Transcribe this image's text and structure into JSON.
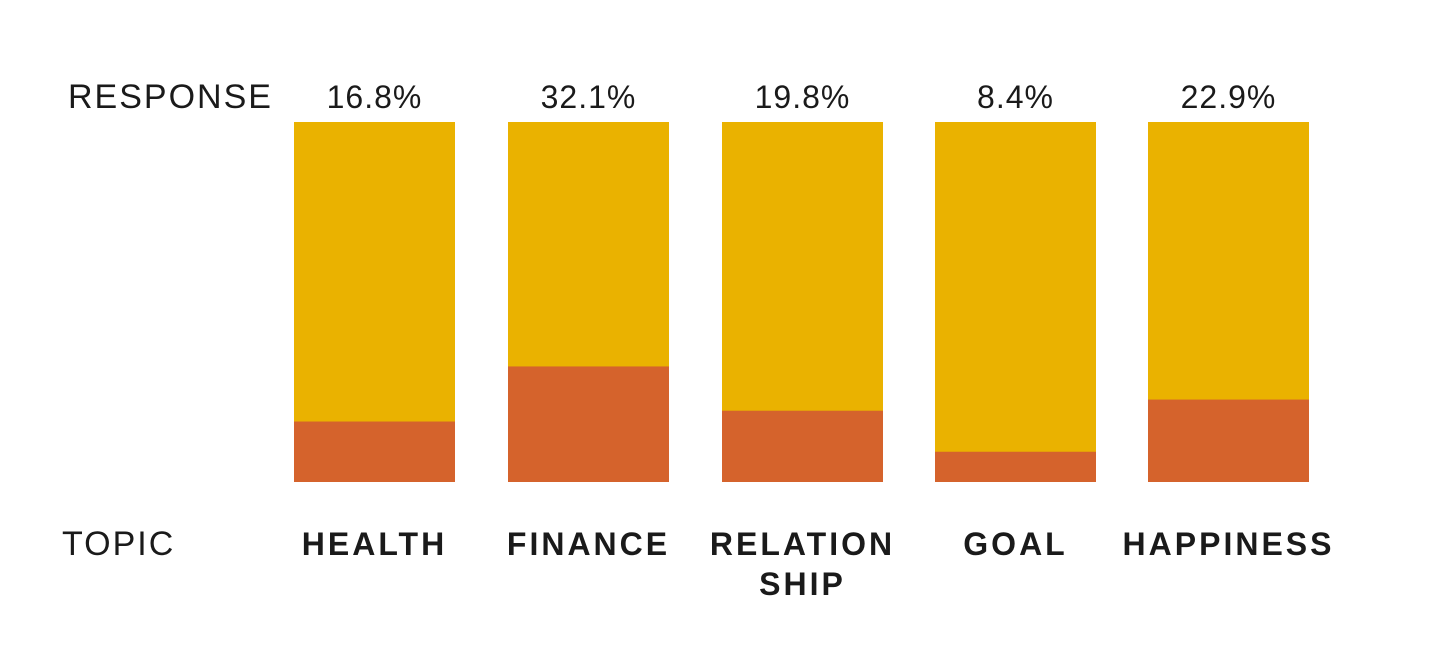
{
  "chart_data": {
    "type": "bar",
    "stacked": true,
    "row_labels": {
      "values_row": "RESPONSE",
      "categories_row": "TOPIC"
    },
    "categories": [
      [
        "HEALTH"
      ],
      [
        "FINANCE"
      ],
      [
        "RELATION",
        "SHIP"
      ],
      [
        "GOAL"
      ],
      [
        "HAPPINESS"
      ]
    ],
    "values": [
      16.8,
      32.1,
      19.8,
      8.4,
      22.9
    ],
    "value_labels": [
      "16.8%",
      "32.1%",
      "19.8%",
      "8.4%",
      "22.9%"
    ],
    "ylim": [
      0,
      100
    ],
    "grid": false,
    "legend": "none",
    "colors": {
      "background_bar": "#EAB200",
      "value_bar": "#D5632C",
      "text": "#1a1a1a"
    }
  }
}
